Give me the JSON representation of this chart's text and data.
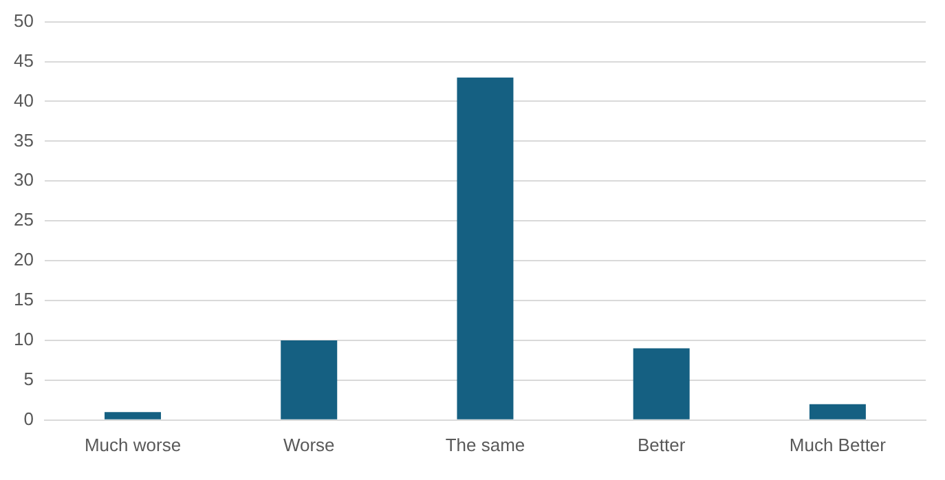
{
  "chart_data": {
    "type": "bar",
    "categories": [
      "Much worse",
      "Worse",
      "The same",
      "Better",
      "Much Better"
    ],
    "values": [
      1,
      10,
      43,
      9,
      2
    ],
    "color": "#156082",
    "ylim": [
      0,
      50
    ],
    "yticks": [
      0,
      5,
      10,
      15,
      20,
      25,
      30,
      35,
      40,
      45,
      50
    ],
    "grid": "y",
    "legend": false
  }
}
